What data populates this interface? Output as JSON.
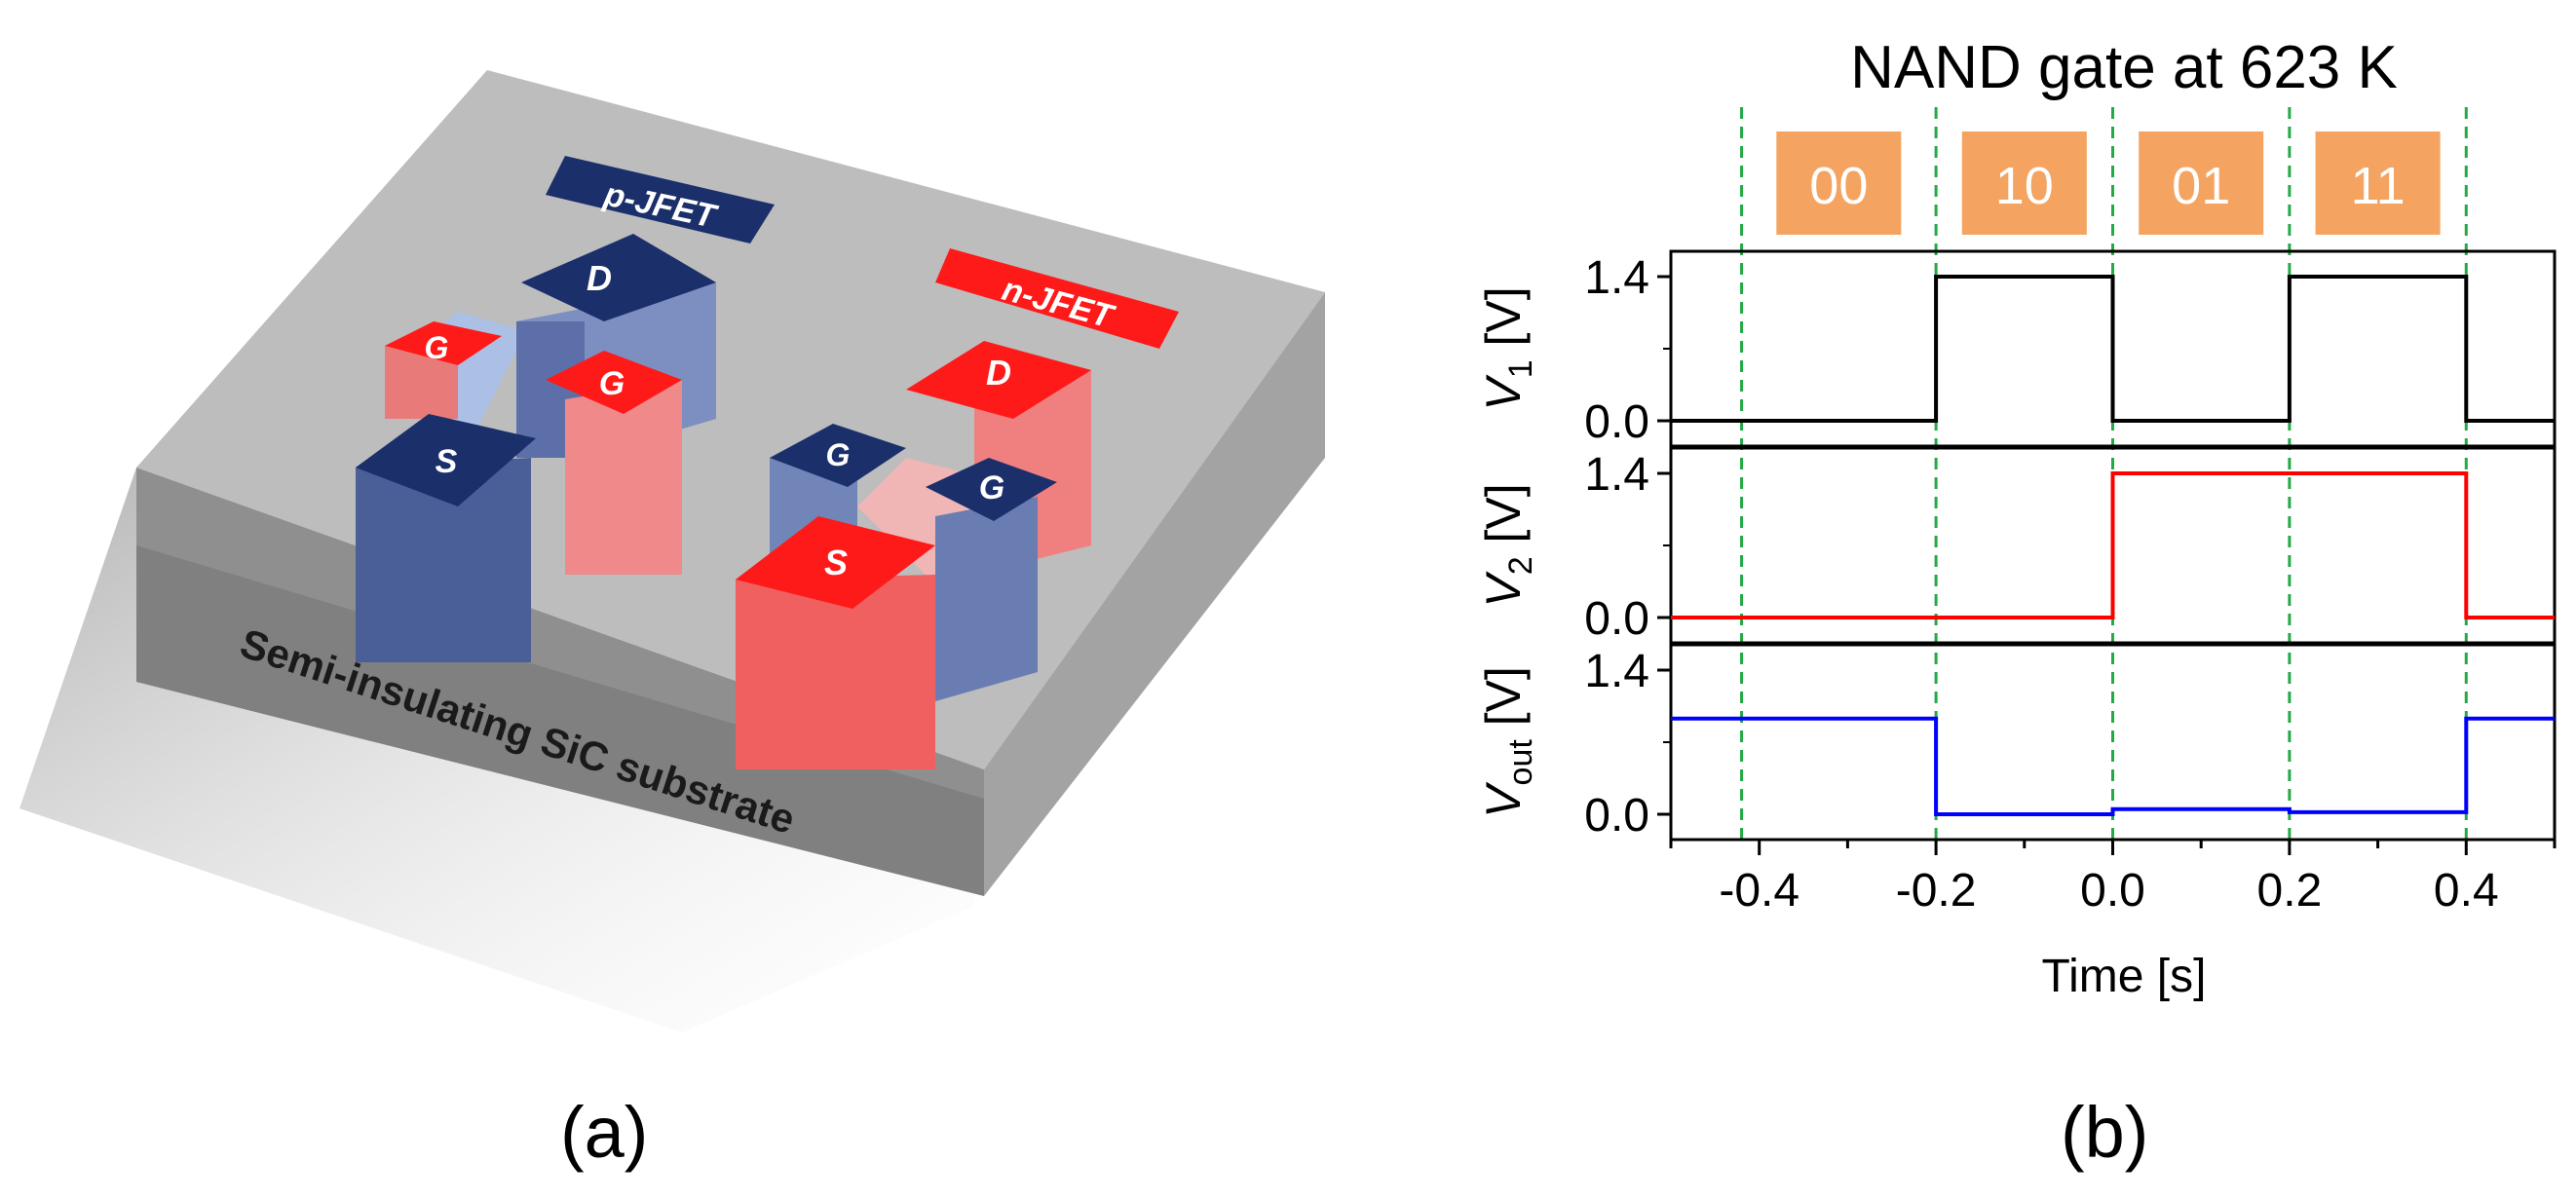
{
  "panel_a": {
    "label": "(a)",
    "substrate_label": "Semi-insulating SiC substrate",
    "p_jfet": {
      "tag": "p-JFET",
      "drain": "D",
      "gate_left": "G",
      "gate_right": "G",
      "source": "S"
    },
    "n_jfet": {
      "tag": "n-JFET",
      "drain": "D",
      "gate_left": "G",
      "gate_right": "G",
      "source": "S"
    },
    "colors": {
      "p_type": "#1b2f6b",
      "n_type": "#ff1a1a",
      "substrate": "#b4b4b4"
    }
  },
  "panel_b": {
    "label": "(b)"
  },
  "chart_data": {
    "type": "line",
    "title": "NAND gate at 623 K",
    "xlabel": "Time [s]",
    "xlim": [
      -0.5,
      0.5
    ],
    "x_ticks": [
      "-0.4",
      "-0.2",
      "0.0",
      "0.2",
      "0.4"
    ],
    "x_tick_values": [
      -0.4,
      -0.2,
      0.0,
      0.2,
      0.4
    ],
    "ylim": [
      0,
      1.4
    ],
    "y_tick_labels": [
      "0.0",
      "1.4"
    ],
    "dashed_line_color": "#22aa44",
    "dashed_markers_x": [
      -0.42,
      -0.2,
      0.0,
      0.2,
      0.4
    ],
    "input_states": [
      {
        "label": "00",
        "x_start": -0.42,
        "x_end": -0.2
      },
      {
        "label": "10",
        "x_start": -0.2,
        "x_end": 0.0
      },
      {
        "label": "01",
        "x_start": 0.0,
        "x_end": 0.2
      },
      {
        "label": "11",
        "x_start": 0.2,
        "x_end": 0.4
      }
    ],
    "state_box_color": "#f4a460",
    "series": [
      {
        "name": "V1",
        "ylabel_main": "V",
        "ylabel_sub": "1",
        "ylabel_unit": " [V]",
        "color": "#000000",
        "points": [
          [
            -0.5,
            0.0
          ],
          [
            -0.2,
            0.0
          ],
          [
            -0.2,
            1.4
          ],
          [
            0.0,
            1.4
          ],
          [
            0.0,
            0.0
          ],
          [
            0.2,
            0.0
          ],
          [
            0.2,
            1.4
          ],
          [
            0.4,
            1.4
          ],
          [
            0.4,
            0.0
          ],
          [
            0.5,
            0.0
          ]
        ]
      },
      {
        "name": "V2",
        "ylabel_main": "V",
        "ylabel_sub": "2",
        "ylabel_unit": " [V]",
        "color": "#ff0000",
        "points": [
          [
            -0.5,
            0.0
          ],
          [
            0.0,
            0.0
          ],
          [
            0.0,
            1.4
          ],
          [
            0.4,
            1.4
          ],
          [
            0.4,
            0.0
          ],
          [
            0.5,
            0.0
          ]
        ]
      },
      {
        "name": "Vout",
        "ylabel_main": "V",
        "ylabel_sub": "out",
        "ylabel_unit": " [V]",
        "color": "#0000ff",
        "points": [
          [
            -0.5,
            0.93
          ],
          [
            -0.2,
            0.93
          ],
          [
            -0.2,
            0.0
          ],
          [
            0.0,
            0.0
          ],
          [
            0.0,
            0.05
          ],
          [
            0.2,
            0.05
          ],
          [
            0.2,
            0.02
          ],
          [
            0.4,
            0.02
          ],
          [
            0.4,
            0.93
          ],
          [
            0.5,
            0.93
          ]
        ]
      }
    ]
  }
}
